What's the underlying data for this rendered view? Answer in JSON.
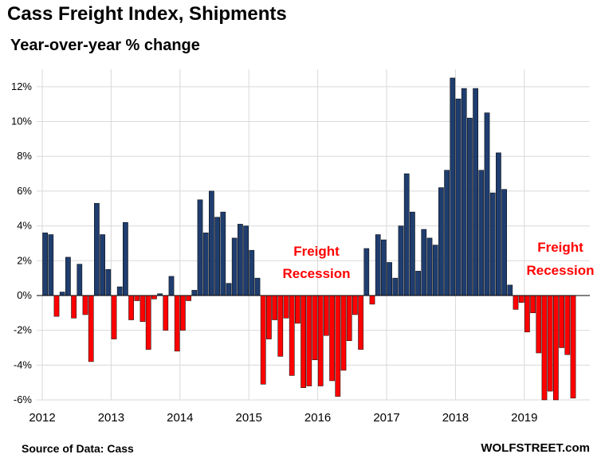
{
  "chart_data": {
    "type": "bar",
    "title": "Cass Freight Index, Shipments",
    "subtitle": "Year-over-year % change",
    "ylim": [
      -6,
      13
    ],
    "y_ticks": [
      12,
      10,
      8,
      6,
      4,
      2,
      0,
      -2,
      -4,
      -6
    ],
    "y_tick_labels": [
      "12%",
      "10%",
      "8%",
      "6%",
      "4%",
      "2%",
      "0%",
      "-2%",
      "-4%",
      "-6%"
    ],
    "x_tick_labels": [
      "2012",
      "2013",
      "2014",
      "2015",
      "2016",
      "2017",
      "2018",
      "2019"
    ],
    "x_start": "2012-01",
    "grid": true,
    "legend": "none",
    "colors": {
      "positive": "#1f3d6e",
      "negative": "#ff0000",
      "bar_edge": "#000000",
      "grid": "#d9d9d9"
    },
    "series": [
      {
        "values": [
          3.6,
          3.5,
          -1.2,
          0.2,
          2.2,
          -1.3,
          1.8,
          -1.1,
          -3.8,
          5.3,
          3.5,
          1.5,
          -2.5,
          0.5,
          4.2,
          -1.4,
          -0.3,
          -1.5,
          -3.1,
          -0.2,
          0.1,
          -2.0,
          1.1,
          -3.2,
          -2.0,
          -0.3,
          0.3,
          5.5,
          3.6,
          6.0,
          4.5,
          4.8,
          0.7,
          3.3,
          4.1,
          4.0,
          2.6,
          1.0,
          -5.1,
          -2.5,
          -1.4,
          -3.5,
          -1.3,
          -4.6,
          -1.6,
          -5.3,
          -5.2,
          -3.7,
          -5.2,
          -2.3,
          -4.9,
          -5.8,
          -4.3,
          -2.6,
          -1.1,
          -3.1,
          2.7,
          -0.5,
          3.5,
          3.2,
          1.9,
          1.0,
          4.0,
          7.0,
          4.8,
          1.4,
          3.8,
          3.3,
          2.9,
          6.2,
          7.2,
          12.5,
          11.3,
          11.9,
          10.2,
          11.9,
          7.2,
          10.5,
          5.9,
          8.2,
          6.1,
          0.6,
          -0.8,
          -0.4,
          -2.1,
          -1.0,
          -3.3,
          -6.0,
          -5.5,
          -6.0,
          -3.0,
          -3.4,
          -5.9
        ]
      }
    ],
    "annotations": [
      {
        "lines": [
          "Freight",
          "Recession"
        ]
      },
      {
        "lines": [
          "Freight",
          "Recession"
        ]
      }
    ]
  },
  "source": "Source of Data: Cass",
  "brand": "WOLFSTREET.com"
}
